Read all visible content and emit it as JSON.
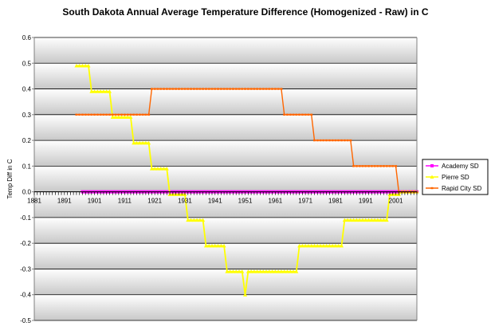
{
  "chart_data": {
    "type": "line",
    "title": "South Dakota Annual Average Temperature Difference (Homogenized - Raw) in C",
    "xlabel": "",
    "ylabel": "Temp Diff in C",
    "xlim": [
      1881,
      2008
    ],
    "ylim": [
      -0.5,
      0.6
    ],
    "x_ticks": [
      1881,
      1891,
      1901,
      1911,
      1921,
      1931,
      1941,
      1951,
      1961,
      1971,
      1981,
      1991,
      2001
    ],
    "y_ticks": [
      0.6,
      0.5,
      0.4,
      0.3,
      0.2,
      0.1,
      0.0,
      -0.1,
      -0.2,
      -0.3,
      -0.4,
      -0.5
    ],
    "y_tick_labels": [
      "0.6",
      "0.5",
      "0.4",
      "0.3",
      "0.2",
      "0.1",
      "0.0",
      "-0.1",
      "-0.2",
      "-0.3",
      "-0.4",
      "-0.5"
    ],
    "grid": true,
    "legend_position": "right",
    "series": [
      {
        "name": "Academy SD",
        "color": "#ff00ff",
        "marker": "square",
        "points": [
          [
            1897,
            0.0
          ],
          [
            2008,
            0.0
          ]
        ]
      },
      {
        "name": "Pierre SD",
        "color": "#ffff00",
        "marker": "triangle",
        "points": [
          [
            1895,
            0.49
          ],
          [
            1899,
            0.49
          ],
          [
            1900,
            0.39
          ],
          [
            1906,
            0.39
          ],
          [
            1907,
            0.29
          ],
          [
            1913,
            0.29
          ],
          [
            1914,
            0.19
          ],
          [
            1919,
            0.19
          ],
          [
            1920,
            0.09
          ],
          [
            1925,
            0.09
          ],
          [
            1926,
            -0.01
          ],
          [
            1931,
            -0.01
          ],
          [
            1932,
            -0.11
          ],
          [
            1937,
            -0.11
          ],
          [
            1938,
            -0.21
          ],
          [
            1944,
            -0.21
          ],
          [
            1945,
            -0.31
          ],
          [
            1950,
            -0.31
          ],
          [
            1951,
            -0.4
          ],
          [
            1952,
            -0.31
          ],
          [
            1968,
            -0.31
          ],
          [
            1969,
            -0.21
          ],
          [
            1983,
            -0.21
          ],
          [
            1984,
            -0.11
          ],
          [
            1998,
            -0.11
          ],
          [
            1999,
            -0.01
          ],
          [
            2002,
            -0.01
          ],
          [
            2003,
            0.0
          ],
          [
            2008,
            0.0
          ]
        ]
      },
      {
        "name": "Rapid City SD",
        "color": "#ff6600",
        "marker": "dash",
        "points": [
          [
            1895,
            0.3
          ],
          [
            1919,
            0.3
          ],
          [
            1920,
            0.4
          ],
          [
            1963,
            0.4
          ],
          [
            1964,
            0.3
          ],
          [
            1973,
            0.3
          ],
          [
            1974,
            0.2
          ],
          [
            1986,
            0.2
          ],
          [
            1987,
            0.1
          ],
          [
            2001,
            0.1
          ],
          [
            2002,
            0.0
          ],
          [
            2008,
            0.0
          ]
        ]
      }
    ]
  }
}
